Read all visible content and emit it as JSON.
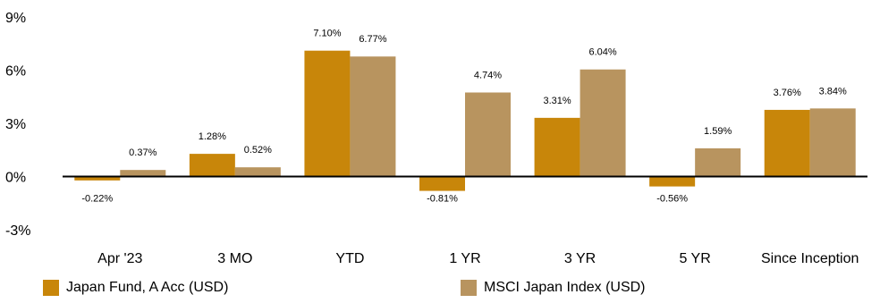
{
  "chart_data": {
    "type": "bar",
    "categories": [
      "Apr '23",
      "3 MO",
      "YTD",
      "1 YR",
      "3 YR",
      "5 YR",
      "Since Inception"
    ],
    "series": [
      {
        "name": "Japan Fund, A Acc (USD)",
        "values": [
          -0.22,
          1.28,
          7.1,
          -0.81,
          3.31,
          -0.56,
          3.76
        ],
        "labels": [
          "-0.22%",
          "1.28%",
          "7.10%",
          "-0.81%",
          "3.31%",
          "-0.56%",
          "3.76%"
        ],
        "color": "#C8860A"
      },
      {
        "name": "MSCI Japan Index (USD)",
        "values": [
          0.37,
          0.52,
          6.77,
          4.74,
          6.04,
          1.59,
          3.84
        ],
        "labels": [
          "0.37%",
          "0.52%",
          "6.77%",
          "4.74%",
          "6.04%",
          "1.59%",
          "3.84%"
        ],
        "color": "#B8945F"
      }
    ],
    "yticks": [
      "9%",
      "6%",
      "3%",
      "0%",
      "-3%"
    ],
    "ytick_values": [
      9,
      6,
      3,
      0,
      -3
    ],
    "ylim": [
      -3,
      9
    ],
    "grid": false,
    "legend_position": "bottom"
  }
}
